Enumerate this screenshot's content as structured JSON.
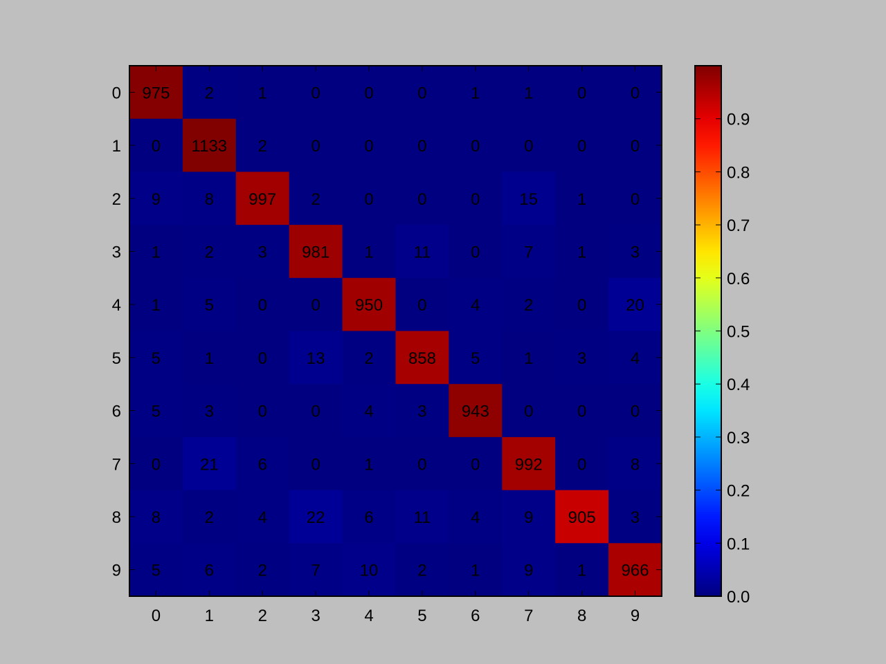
{
  "chart_data": {
    "type": "heatmap",
    "title": "",
    "xlabel": "",
    "ylabel": "",
    "x_labels": [
      "0",
      "1",
      "2",
      "3",
      "4",
      "5",
      "6",
      "7",
      "8",
      "9"
    ],
    "y_labels": [
      "0",
      "1",
      "2",
      "3",
      "4",
      "5",
      "6",
      "7",
      "8",
      "9"
    ],
    "matrix": [
      [
        975,
        2,
        1,
        0,
        0,
        0,
        1,
        1,
        0,
        0
      ],
      [
        0,
        1133,
        2,
        0,
        0,
        0,
        0,
        0,
        0,
        0
      ],
      [
        9,
        8,
        997,
        2,
        0,
        0,
        0,
        15,
        1,
        0
      ],
      [
        1,
        2,
        3,
        981,
        1,
        11,
        0,
        7,
        1,
        3
      ],
      [
        1,
        5,
        0,
        0,
        950,
        0,
        4,
        2,
        0,
        20
      ],
      [
        5,
        1,
        0,
        13,
        2,
        858,
        5,
        1,
        3,
        4
      ],
      [
        5,
        3,
        0,
        0,
        4,
        3,
        943,
        0,
        0,
        0
      ],
      [
        0,
        21,
        6,
        0,
        1,
        0,
        0,
        992,
        0,
        8
      ],
      [
        8,
        2,
        4,
        22,
        6,
        11,
        4,
        9,
        905,
        3
      ],
      [
        5,
        6,
        2,
        7,
        10,
        2,
        1,
        9,
        1,
        966
      ]
    ],
    "colormap": "jet",
    "colorbar": {
      "range": [
        0.0,
        1.0
      ],
      "tick_labels": [
        "0.0",
        "0.1",
        "0.2",
        "0.3",
        "0.4",
        "0.5",
        "0.6",
        "0.7",
        "0.8",
        "0.9"
      ]
    },
    "grid": false,
    "legend": "none"
  },
  "colors": {
    "figure_background": "#bfbfbf",
    "axes_frame": "#000000",
    "annotation_text": "#000000"
  }
}
